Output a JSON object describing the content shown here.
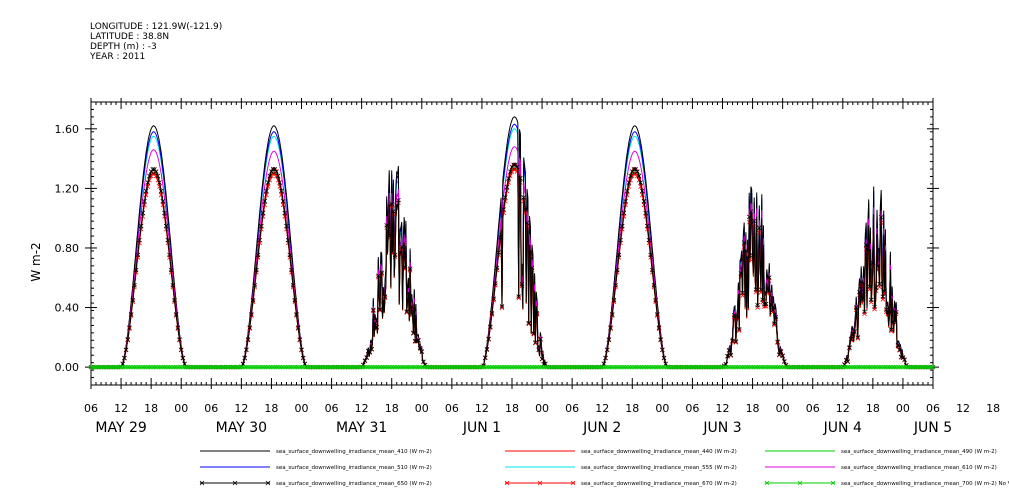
{
  "meta": {
    "longitude": "LONGITUDE : 121.9W(-121.9)",
    "latitude": "LATITUDE : 38.8N",
    "depth": "DEPTH (m) : -3",
    "year": "YEAR : 2011"
  },
  "chart_data": {
    "type": "line",
    "title": "",
    "xlabel": "",
    "ylabel": "W m-2",
    "ylim": [
      -0.12,
      1.78
    ],
    "yticks": [
      0.0,
      0.4,
      0.8,
      1.2,
      1.6
    ],
    "ytick_labels": [
      "0.00",
      "0.40",
      "0.80",
      "1.20",
      "1.60"
    ],
    "x_start": "2011-05-29 06:00",
    "x_end": "2011-06-05 06:00",
    "xtick_labels": [
      "06",
      "12",
      "18",
      "00",
      "06",
      "12",
      "18",
      "00",
      "06",
      "12",
      "18",
      "00",
      "06",
      "12",
      "18",
      "00",
      "06",
      "12",
      "18",
      "00",
      "06",
      "12",
      "18",
      "00",
      "06",
      "12",
      "18",
      "00",
      "06",
      "12",
      "18",
      "00",
      "06"
    ],
    "day_labels": [
      {
        "text": "MAY 29",
        "at": "2011-05-29 12:00"
      },
      {
        "text": "MAY 30",
        "at": "2011-05-30 12:00"
      },
      {
        "text": "MAY 31",
        "at": "2011-05-31 12:00"
      },
      {
        "text": "JUN  1",
        "at": "2011-06-01 12:00"
      },
      {
        "text": "JUN  2",
        "at": "2011-06-02 12:00"
      },
      {
        "text": "JUN  3",
        "at": "2011-06-03 12:00"
      },
      {
        "text": "JUN  4",
        "at": "2011-06-04 12:00"
      },
      {
        "text": "JUN  5",
        "at": "2011-06-05 06:00"
      }
    ],
    "daily_peaks": [
      {
        "day": "2011-05-29",
        "noon": "18:30",
        "peaks": {
          "410": 1.62,
          "440": 1.33,
          "490": 1.31,
          "510": 1.58,
          "555": 1.55,
          "610": 1.46,
          "650": 1.33,
          "670": 1.3
        }
      },
      {
        "day": "2011-05-30",
        "noon": "18:30",
        "peaks": {
          "410": 1.62,
          "440": 1.34,
          "490": 1.31,
          "510": 1.58,
          "555": 1.55,
          "610": 1.45,
          "650": 1.33,
          "670": 1.3
        }
      },
      {
        "day": "2011-05-31",
        "noon": "18:30",
        "peaks": {
          "410": 1.47,
          "440": 1.22,
          "490": 1.2,
          "510": 1.44,
          "555": 1.4,
          "610": 1.3,
          "650": 1.22,
          "670": 1.2
        }
      },
      {
        "day": "2011-06-01",
        "noon": "18:30",
        "peaks": {
          "410": 1.68,
          "440": 1.37,
          "490": 1.34,
          "510": 1.63,
          "555": 1.6,
          "610": 1.48,
          "650": 1.36,
          "670": 1.33
        }
      },
      {
        "day": "2011-06-02",
        "noon": "18:30",
        "peaks": {
          "410": 1.62,
          "440": 1.34,
          "490": 1.31,
          "510": 1.58,
          "555": 1.55,
          "610": 1.45,
          "650": 1.33,
          "670": 1.3
        }
      },
      {
        "day": "2011-06-03",
        "noon": "18:30",
        "peaks": {
          "410": 1.3,
          "440": 1.1,
          "490": 1.08,
          "510": 1.27,
          "555": 1.25,
          "610": 1.18,
          "650": 1.12,
          "670": 1.08
        }
      },
      {
        "day": "2011-06-04",
        "noon": "18:30",
        "peaks": {
          "410": 1.3,
          "440": 1.08,
          "490": 1.05,
          "510": 1.27,
          "555": 1.25,
          "610": 1.15,
          "650": 1.1,
          "670": 1.06
        }
      }
    ],
    "series": [
      {
        "name": "sea_surface_downwelling_irradiance_mean_410 (W m-2)",
        "key": "410",
        "color": "#000000",
        "marker": "none"
      },
      {
        "name": "sea_surface_downwelling_irradiance_mean_440 (W m-2)",
        "key": "440",
        "color": "#ff0000",
        "marker": "none"
      },
      {
        "name": "sea_surface_downwelling_irradiance_mean_490 (W m-2)",
        "key": "490",
        "color": "#00cc00",
        "marker": "none"
      },
      {
        "name": "sea_surface_downwelling_irradiance_mean_510 (W m-2)",
        "key": "510",
        "color": "#0000ff",
        "marker": "none"
      },
      {
        "name": "sea_surface_downwelling_irradiance_mean_555 (W m-2)",
        "key": "555",
        "color": "#00e5e5",
        "marker": "none"
      },
      {
        "name": "sea_surface_downwelling_irradiance_mean_610 (W m-2)",
        "key": "610",
        "color": "#e000e0",
        "marker": "none"
      },
      {
        "name": "sea_surface_downwelling_irradiance_mean_650 (W m-2)",
        "key": "650",
        "color": "#000000",
        "marker": "x"
      },
      {
        "name": "sea_surface_downwelling_irradiance_mean_670 (W m-2)",
        "key": "670",
        "color": "#ff0000",
        "marker": "x"
      },
      {
        "name": "sea_surface_downwelling_irradiance_mean_700 (W m-2) No Valid Data",
        "key": "700",
        "color": "#00cc00",
        "marker": "x"
      }
    ]
  }
}
